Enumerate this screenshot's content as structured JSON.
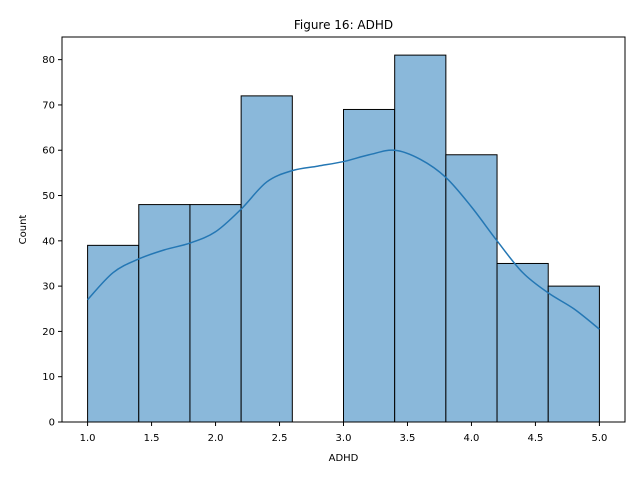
{
  "chart_data": {
    "type": "bar",
    "title": "Figure 16: ADHD",
    "xlabel": "ADHD",
    "ylabel": "Count",
    "xlim": [
      0.8,
      5.2
    ],
    "ylim": [
      0,
      85
    ],
    "x_ticks": [
      1.0,
      1.5,
      2.0,
      2.5,
      3.0,
      3.5,
      4.0,
      4.5,
      5.0
    ],
    "x_tick_labels": [
      "1.0",
      "1.5",
      "2.0",
      "2.5",
      "3.0",
      "3.5",
      "4.0",
      "4.5",
      "5.0"
    ],
    "y_ticks": [
      0,
      10,
      20,
      30,
      40,
      50,
      60,
      70,
      80
    ],
    "y_tick_labels": [
      "0",
      "10",
      "20",
      "30",
      "40",
      "50",
      "60",
      "70",
      "80"
    ],
    "bins": [
      {
        "x0": 1.0,
        "x1": 1.4,
        "count": 39
      },
      {
        "x0": 1.4,
        "x1": 1.8,
        "count": 48
      },
      {
        "x0": 1.8,
        "x1": 2.2,
        "count": 48
      },
      {
        "x0": 2.2,
        "x1": 2.6,
        "count": 72
      },
      {
        "x0": 2.6,
        "x1": 3.0,
        "count": 0
      },
      {
        "x0": 3.0,
        "x1": 3.4,
        "count": 69
      },
      {
        "x0": 3.4,
        "x1": 3.8,
        "count": 81
      },
      {
        "x0": 3.8,
        "x1": 4.2,
        "count": 59
      },
      {
        "x0": 4.2,
        "x1": 4.6,
        "count": 35
      },
      {
        "x0": 4.6,
        "x1": 5.0,
        "count": 30
      }
    ],
    "kde": {
      "x": [
        1.0,
        1.2,
        1.4,
        1.6,
        1.8,
        2.0,
        2.2,
        2.4,
        2.6,
        2.8,
        3.0,
        3.2,
        3.4,
        3.6,
        3.8,
        4.0,
        4.2,
        4.4,
        4.6,
        4.8,
        5.0
      ],
      "y": [
        27,
        33,
        36,
        38,
        39.5,
        42,
        47,
        53,
        55.5,
        56.5,
        57.5,
        59,
        60,
        58,
        54,
        47.5,
        40,
        33,
        28.5,
        25,
        20.5
      ]
    },
    "colors": {
      "bar_fill": "#8ab8da",
      "bar_edge": "#000000",
      "kde_line": "#2477b4"
    },
    "grid": false
  }
}
